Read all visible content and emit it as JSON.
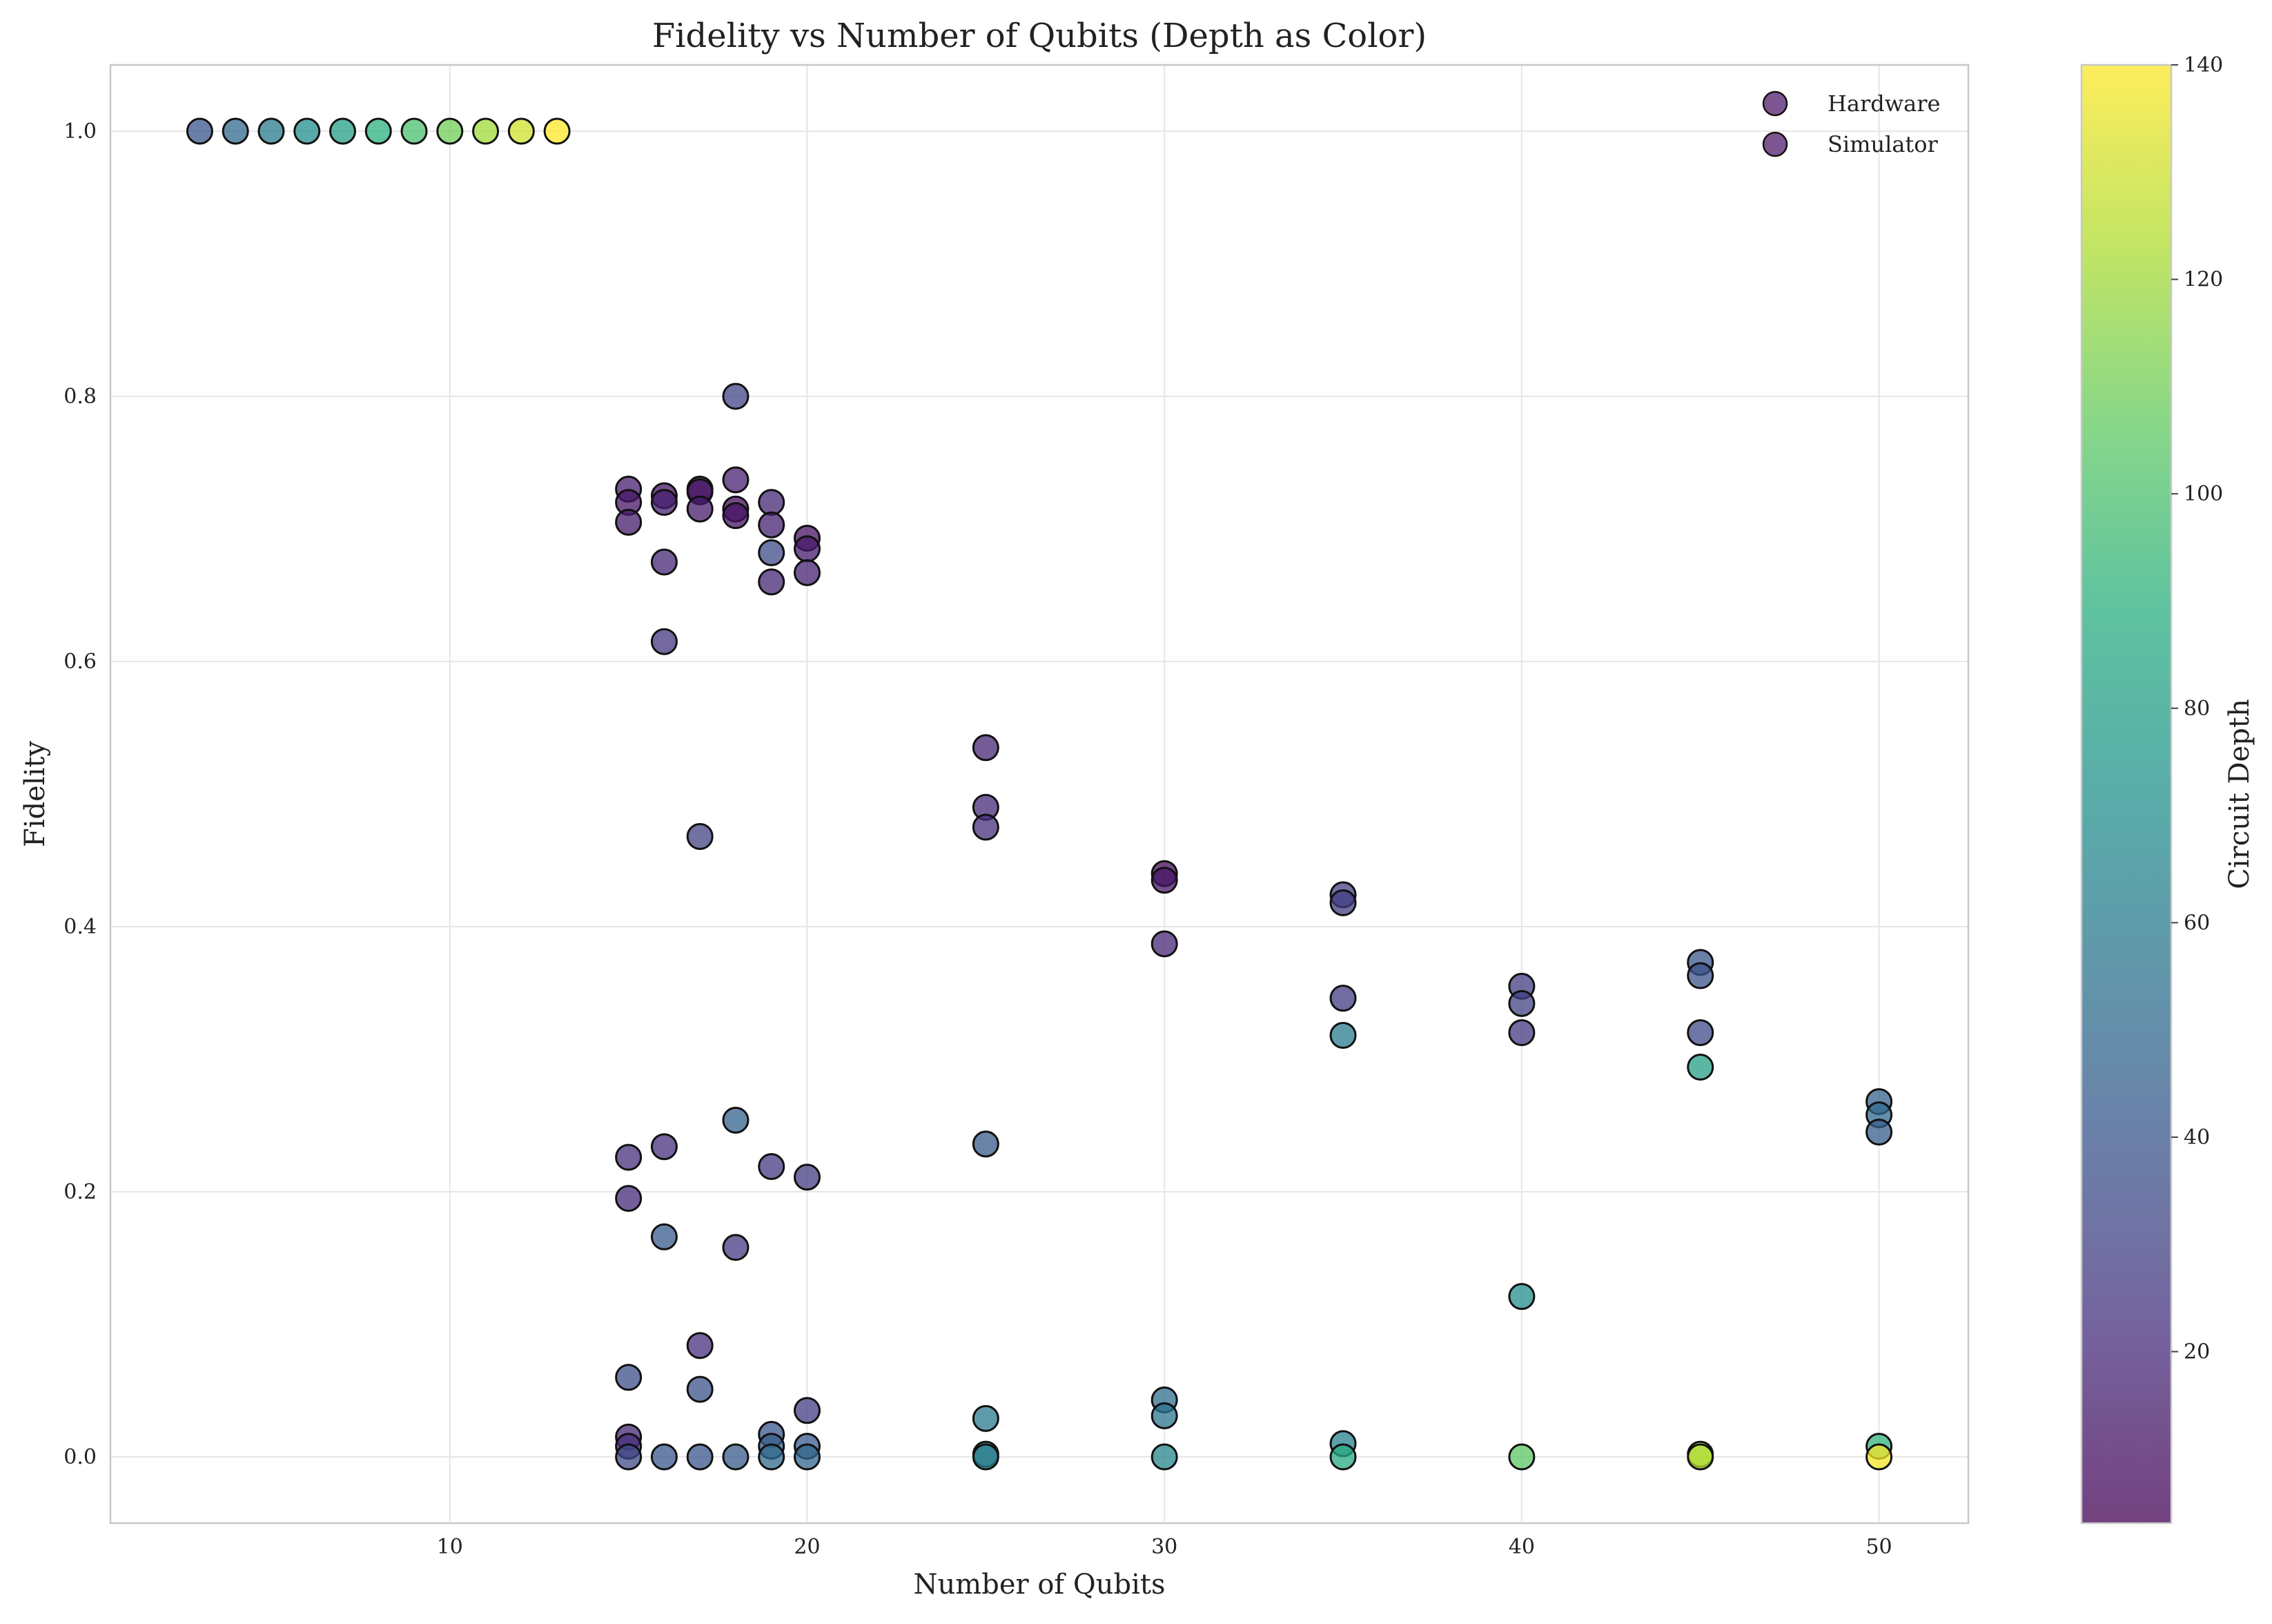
{
  "chart_data": {
    "type": "scatter",
    "title": "Fidelity vs Number of Qubits (Depth as Color)",
    "xlabel": "Number of Qubits",
    "ylabel": "Fidelity",
    "xlim": [
      0.5,
      52.5
    ],
    "ylim": [
      -0.05,
      1.05
    ],
    "xticks": [
      10,
      20,
      30,
      40,
      50
    ],
    "xtick_labels": [
      "10",
      "20",
      "30",
      "40",
      "50"
    ],
    "yticks": [
      0.0,
      0.2,
      0.4,
      0.6,
      0.8,
      1.0
    ],
    "ytick_labels": [
      "0.0",
      "0.2",
      "0.4",
      "0.6",
      "0.8",
      "1.0"
    ],
    "grid": true,
    "legend": {
      "placement": "top-right",
      "entries": [
        {
          "label": "Hardware",
          "color": "#5b2a76"
        },
        {
          "label": "Simulator",
          "color": "#5b2a76"
        }
      ]
    },
    "colorbar": {
      "label": "Circuit Depth",
      "range": [
        4,
        140
      ],
      "ticks": [
        20,
        40,
        60,
        80,
        100,
        120,
        140
      ],
      "tick_labels": [
        "20",
        "40",
        "60",
        "80",
        "100",
        "120",
        "140"
      ],
      "colormap": "viridis"
    },
    "colors": {
      "marker_edge": "#111111",
      "grid": "#e6e6e6",
      "spine": "#c8c8c8"
    },
    "series": [
      {
        "name": "Hardware",
        "points": [
          {
            "x": 15,
            "y": 0.73,
            "depth": 15
          },
          {
            "x": 15,
            "y": 0.72,
            "depth": 12
          },
          {
            "x": 15,
            "y": 0.705,
            "depth": 14
          },
          {
            "x": 16,
            "y": 0.725,
            "depth": 10
          },
          {
            "x": 16,
            "y": 0.72,
            "depth": 16
          },
          {
            "x": 16,
            "y": 0.675,
            "depth": 18
          },
          {
            "x": 16,
            "y": 0.615,
            "depth": 25
          },
          {
            "x": 17,
            "y": 0.73,
            "depth": 8
          },
          {
            "x": 17,
            "y": 0.728,
            "depth": 12
          },
          {
            "x": 17,
            "y": 0.715,
            "depth": 14
          },
          {
            "x": 17,
            "y": 0.468,
            "depth": 30
          },
          {
            "x": 18,
            "y": 0.8,
            "depth": 32
          },
          {
            "x": 18,
            "y": 0.737,
            "depth": 16
          },
          {
            "x": 18,
            "y": 0.715,
            "depth": 8
          },
          {
            "x": 18,
            "y": 0.71,
            "depth": 10
          },
          {
            "x": 19,
            "y": 0.72,
            "depth": 18
          },
          {
            "x": 19,
            "y": 0.703,
            "depth": 16
          },
          {
            "x": 19,
            "y": 0.682,
            "depth": 35
          },
          {
            "x": 19,
            "y": 0.66,
            "depth": 18
          },
          {
            "x": 20,
            "y": 0.693,
            "depth": 10
          },
          {
            "x": 20,
            "y": 0.685,
            "depth": 14
          },
          {
            "x": 20,
            "y": 0.667,
            "depth": 16
          },
          {
            "x": 25,
            "y": 0.535,
            "depth": 18
          },
          {
            "x": 25,
            "y": 0.49,
            "depth": 20
          },
          {
            "x": 25,
            "y": 0.475,
            "depth": 22
          },
          {
            "x": 30,
            "y": 0.44,
            "depth": 8
          },
          {
            "x": 30,
            "y": 0.435,
            "depth": 12
          },
          {
            "x": 30,
            "y": 0.387,
            "depth": 18
          },
          {
            "x": 35,
            "y": 0.424,
            "depth": 30
          },
          {
            "x": 35,
            "y": 0.418,
            "depth": 28
          },
          {
            "x": 35,
            "y": 0.346,
            "depth": 28
          },
          {
            "x": 35,
            "y": 0.318,
            "depth": 60
          },
          {
            "x": 40,
            "y": 0.355,
            "depth": 28
          },
          {
            "x": 40,
            "y": 0.342,
            "depth": 30
          },
          {
            "x": 40,
            "y": 0.32,
            "depth": 26
          },
          {
            "x": 40,
            "y": 0.121,
            "depth": 70
          },
          {
            "x": 45,
            "y": 0.373,
            "depth": 40
          },
          {
            "x": 45,
            "y": 0.363,
            "depth": 38
          },
          {
            "x": 45,
            "y": 0.32,
            "depth": 34
          },
          {
            "x": 45,
            "y": 0.294,
            "depth": 80
          },
          {
            "x": 50,
            "y": 0.268,
            "depth": 46
          },
          {
            "x": 50,
            "y": 0.258,
            "depth": 50
          },
          {
            "x": 50,
            "y": 0.245,
            "depth": 44
          }
        ]
      },
      {
        "name": "Simulator",
        "points": [
          {
            "x": 3,
            "y": 1.0,
            "depth": 40
          },
          {
            "x": 4,
            "y": 1.0,
            "depth": 50
          },
          {
            "x": 5,
            "y": 1.0,
            "depth": 60
          },
          {
            "x": 6,
            "y": 1.0,
            "depth": 70
          },
          {
            "x": 7,
            "y": 1.0,
            "depth": 80
          },
          {
            "x": 8,
            "y": 1.0,
            "depth": 90
          },
          {
            "x": 9,
            "y": 1.0,
            "depth": 100
          },
          {
            "x": 10,
            "y": 1.0,
            "depth": 110
          },
          {
            "x": 11,
            "y": 1.0,
            "depth": 120
          },
          {
            "x": 12,
            "y": 1.0,
            "depth": 130
          },
          {
            "x": 13,
            "y": 1.0,
            "depth": 140
          },
          {
            "x": 15,
            "y": 0.226,
            "depth": 22
          },
          {
            "x": 15,
            "y": 0.195,
            "depth": 20
          },
          {
            "x": 15,
            "y": 0.06,
            "depth": 36
          },
          {
            "x": 15,
            "y": 0.015,
            "depth": 18
          },
          {
            "x": 15,
            "y": 0.008,
            "depth": 22
          },
          {
            "x": 15,
            "y": 0.0,
            "depth": 34
          },
          {
            "x": 16,
            "y": 0.234,
            "depth": 22
          },
          {
            "x": 16,
            "y": 0.166,
            "depth": 42
          },
          {
            "x": 16,
            "y": 0.0,
            "depth": 40
          },
          {
            "x": 17,
            "y": 0.084,
            "depth": 22
          },
          {
            "x": 17,
            "y": 0.051,
            "depth": 38
          },
          {
            "x": 17,
            "y": 0.0,
            "depth": 40
          },
          {
            "x": 18,
            "y": 0.254,
            "depth": 46
          },
          {
            "x": 18,
            "y": 0.158,
            "depth": 26
          },
          {
            "x": 18,
            "y": 0.0,
            "depth": 42
          },
          {
            "x": 19,
            "y": 0.219,
            "depth": 26
          },
          {
            "x": 19,
            "y": 0.017,
            "depth": 40
          },
          {
            "x": 19,
            "y": 0.008,
            "depth": 44
          },
          {
            "x": 19,
            "y": 0.0,
            "depth": 50
          },
          {
            "x": 20,
            "y": 0.211,
            "depth": 28
          },
          {
            "x": 20,
            "y": 0.035,
            "depth": 28
          },
          {
            "x": 20,
            "y": 0.008,
            "depth": 42
          },
          {
            "x": 20,
            "y": 0.0,
            "depth": 48
          },
          {
            "x": 25,
            "y": 0.236,
            "depth": 42
          },
          {
            "x": 25,
            "y": 0.029,
            "depth": 60
          },
          {
            "x": 25,
            "y": 0.002,
            "depth": 56
          },
          {
            "x": 25,
            "y": 0.0,
            "depth": 62
          },
          {
            "x": 30,
            "y": 0.043,
            "depth": 52
          },
          {
            "x": 30,
            "y": 0.031,
            "depth": 56
          },
          {
            "x": 30,
            "y": 0.0,
            "depth": 66
          },
          {
            "x": 35,
            "y": 0.01,
            "depth": 64
          },
          {
            "x": 35,
            "y": 0.0,
            "depth": 86
          },
          {
            "x": 40,
            "y": 0.0,
            "depth": 105
          },
          {
            "x": 45,
            "y": 0.002,
            "depth": 118
          },
          {
            "x": 45,
            "y": 0.0,
            "depth": 125
          },
          {
            "x": 50,
            "y": 0.008,
            "depth": 92
          },
          {
            "x": 50,
            "y": 0.0,
            "depth": 138
          }
        ]
      }
    ]
  }
}
